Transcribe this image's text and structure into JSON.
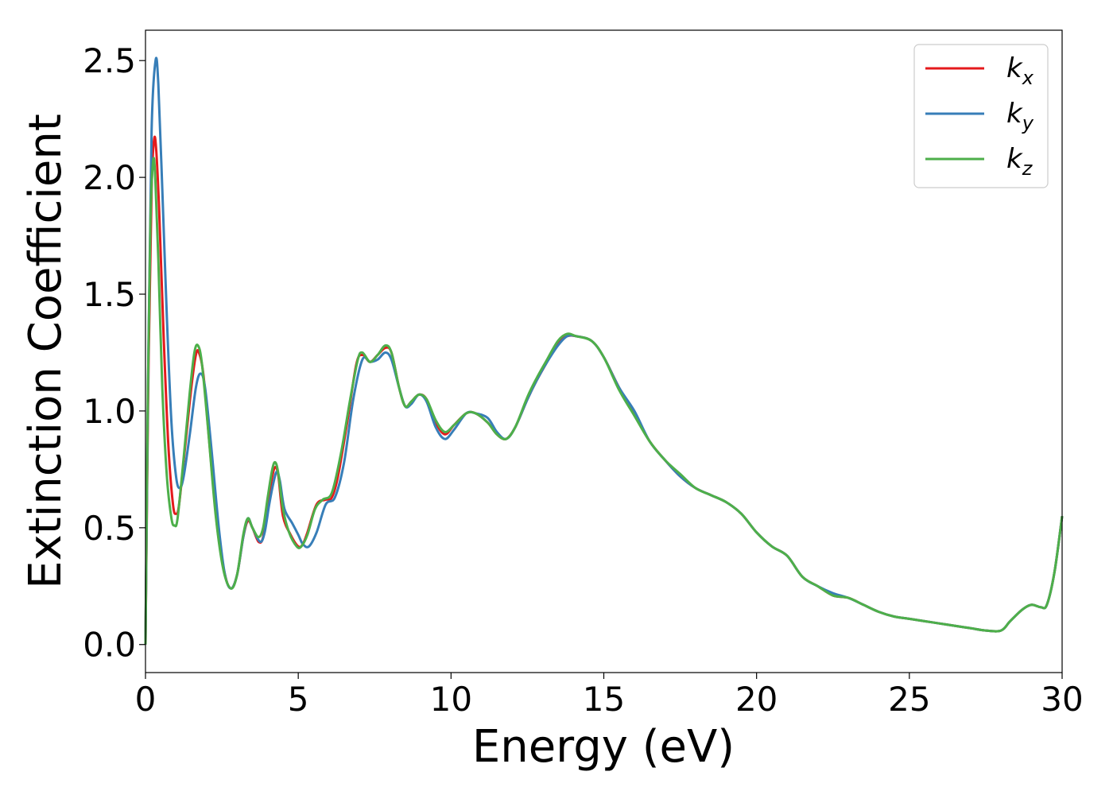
{
  "chart_data": {
    "type": "line",
    "xlabel": "Energy (eV)",
    "ylabel": "Extinction Coefficient",
    "xlim": [
      0,
      30
    ],
    "ylim": [
      -0.12,
      2.63
    ],
    "xticks": [
      0,
      5,
      10,
      15,
      20,
      25,
      30
    ],
    "xtick_labels": [
      "0",
      "5",
      "10",
      "15",
      "20",
      "25",
      "30"
    ],
    "yticks": [
      0.0,
      0.5,
      1.0,
      1.5,
      2.0,
      2.5
    ],
    "ytick_labels": [
      "0.0",
      "0.5",
      "1.0",
      "1.5",
      "2.0",
      "2.5"
    ],
    "grid": false,
    "legend_position": "top-right",
    "colors": {
      "kx": "#e41a1c",
      "ky": "#377eb8",
      "kz": "#4daf4a"
    },
    "series": [
      {
        "id": "kx",
        "name": "k",
        "sub": "x",
        "color": "#e41a1c",
        "points": [
          [
            0,
            0
          ],
          [
            0.1,
            1.2
          ],
          [
            0.2,
            1.95
          ],
          [
            0.28,
            2.16
          ],
          [
            0.35,
            2.12
          ],
          [
            0.45,
            1.85
          ],
          [
            0.6,
            1.3
          ],
          [
            0.75,
            0.85
          ],
          [
            0.9,
            0.6
          ],
          [
            1.0,
            0.56
          ],
          [
            1.1,
            0.6
          ],
          [
            1.3,
            0.85
          ],
          [
            1.5,
            1.1
          ],
          [
            1.65,
            1.24
          ],
          [
            1.75,
            1.25
          ],
          [
            1.9,
            1.15
          ],
          [
            2.1,
            0.85
          ],
          [
            2.35,
            0.5
          ],
          [
            2.6,
            0.3
          ],
          [
            2.8,
            0.24
          ],
          [
            3.0,
            0.3
          ],
          [
            3.2,
            0.46
          ],
          [
            3.35,
            0.53
          ],
          [
            3.5,
            0.5
          ],
          [
            3.7,
            0.44
          ],
          [
            3.85,
            0.46
          ],
          [
            4.0,
            0.6
          ],
          [
            4.15,
            0.72
          ],
          [
            4.25,
            0.76
          ],
          [
            4.35,
            0.72
          ],
          [
            4.5,
            0.55
          ],
          [
            4.75,
            0.47
          ],
          [
            5.0,
            0.42
          ],
          [
            5.15,
            0.43
          ],
          [
            5.3,
            0.48
          ],
          [
            5.6,
            0.6
          ],
          [
            5.9,
            0.62
          ],
          [
            6.1,
            0.63
          ],
          [
            6.3,
            0.72
          ],
          [
            6.6,
            0.95
          ],
          [
            6.9,
            1.2
          ],
          [
            7.1,
            1.24
          ],
          [
            7.35,
            1.21
          ],
          [
            7.6,
            1.24
          ],
          [
            7.85,
            1.27
          ],
          [
            8.05,
            1.25
          ],
          [
            8.3,
            1.1
          ],
          [
            8.5,
            1.02
          ],
          [
            8.7,
            1.04
          ],
          [
            8.95,
            1.07
          ],
          [
            9.2,
            1.05
          ],
          [
            9.5,
            0.95
          ],
          [
            9.8,
            0.9
          ],
          [
            10.1,
            0.94
          ],
          [
            10.5,
            0.99
          ],
          [
            10.8,
            0.99
          ],
          [
            11.2,
            0.95
          ],
          [
            11.5,
            0.9
          ],
          [
            11.8,
            0.88
          ],
          [
            12.1,
            0.93
          ],
          [
            12.5,
            1.05
          ],
          [
            12.8,
            1.13
          ],
          [
            13.1,
            1.2
          ],
          [
            13.5,
            1.29
          ],
          [
            13.8,
            1.32
          ],
          [
            14.1,
            1.32
          ],
          [
            14.6,
            1.3
          ],
          [
            15.0,
            1.23
          ],
          [
            15.5,
            1.1
          ],
          [
            16.0,
            0.99
          ],
          [
            16.5,
            0.87
          ],
          [
            17.0,
            0.79
          ],
          [
            17.5,
            0.72
          ],
          [
            18.0,
            0.67
          ],
          [
            18.5,
            0.64
          ],
          [
            19.0,
            0.61
          ],
          [
            19.5,
            0.56
          ],
          [
            20.0,
            0.48
          ],
          [
            20.5,
            0.42
          ],
          [
            21.0,
            0.38
          ],
          [
            21.5,
            0.29
          ],
          [
            22.0,
            0.25
          ],
          [
            22.5,
            0.21
          ],
          [
            23.0,
            0.2
          ],
          [
            23.5,
            0.17
          ],
          [
            24.0,
            0.14
          ],
          [
            24.5,
            0.12
          ],
          [
            25.0,
            0.11
          ],
          [
            25.5,
            0.1
          ],
          [
            26.0,
            0.09
          ],
          [
            26.5,
            0.08
          ],
          [
            27.0,
            0.07
          ],
          [
            27.5,
            0.06
          ],
          [
            28.0,
            0.06
          ],
          [
            28.3,
            0.1
          ],
          [
            28.7,
            0.15
          ],
          [
            29.0,
            0.17
          ],
          [
            29.3,
            0.16
          ],
          [
            29.5,
            0.17
          ],
          [
            29.75,
            0.31
          ],
          [
            30.0,
            0.55
          ]
        ]
      },
      {
        "id": "ky",
        "name": "k",
        "sub": "y",
        "color": "#377eb8",
        "points": [
          [
            0,
            0
          ],
          [
            0.1,
            1.3
          ],
          [
            0.2,
            2.2
          ],
          [
            0.33,
            2.5
          ],
          [
            0.42,
            2.4
          ],
          [
            0.55,
            1.95
          ],
          [
            0.7,
            1.4
          ],
          [
            0.85,
            0.95
          ],
          [
            1.0,
            0.72
          ],
          [
            1.12,
            0.67
          ],
          [
            1.25,
            0.72
          ],
          [
            1.45,
            0.9
          ],
          [
            1.65,
            1.1
          ],
          [
            1.8,
            1.16
          ],
          [
            1.95,
            1.1
          ],
          [
            2.15,
            0.85
          ],
          [
            2.4,
            0.5
          ],
          [
            2.6,
            0.3
          ],
          [
            2.8,
            0.24
          ],
          [
            3.0,
            0.3
          ],
          [
            3.2,
            0.46
          ],
          [
            3.35,
            0.54
          ],
          [
            3.5,
            0.5
          ],
          [
            3.75,
            0.44
          ],
          [
            3.9,
            0.48
          ],
          [
            4.05,
            0.6
          ],
          [
            4.2,
            0.7
          ],
          [
            4.3,
            0.74
          ],
          [
            4.4,
            0.7
          ],
          [
            4.55,
            0.58
          ],
          [
            4.8,
            0.52
          ],
          [
            5.0,
            0.47
          ],
          [
            5.15,
            0.43
          ],
          [
            5.35,
            0.42
          ],
          [
            5.6,
            0.48
          ],
          [
            5.9,
            0.6
          ],
          [
            6.2,
            0.63
          ],
          [
            6.5,
            0.78
          ],
          [
            6.8,
            1.05
          ],
          [
            7.1,
            1.22
          ],
          [
            7.35,
            1.21
          ],
          [
            7.6,
            1.22
          ],
          [
            7.85,
            1.25
          ],
          [
            8.05,
            1.22
          ],
          [
            8.3,
            1.1
          ],
          [
            8.5,
            1.02
          ],
          [
            8.7,
            1.03
          ],
          [
            8.95,
            1.07
          ],
          [
            9.2,
            1.04
          ],
          [
            9.5,
            0.93
          ],
          [
            9.8,
            0.88
          ],
          [
            10.1,
            0.92
          ],
          [
            10.5,
            0.99
          ],
          [
            10.8,
            0.99
          ],
          [
            11.2,
            0.97
          ],
          [
            11.5,
            0.91
          ],
          [
            11.8,
            0.88
          ],
          [
            12.1,
            0.93
          ],
          [
            12.5,
            1.05
          ],
          [
            12.8,
            1.13
          ],
          [
            13.1,
            1.2
          ],
          [
            13.5,
            1.28
          ],
          [
            13.8,
            1.32
          ],
          [
            14.1,
            1.32
          ],
          [
            14.6,
            1.3
          ],
          [
            15.0,
            1.23
          ],
          [
            15.5,
            1.1
          ],
          [
            16.0,
            1.0
          ],
          [
            16.5,
            0.87
          ],
          [
            17.0,
            0.79
          ],
          [
            17.5,
            0.72
          ],
          [
            18.0,
            0.67
          ],
          [
            18.5,
            0.64
          ],
          [
            19.0,
            0.61
          ],
          [
            19.5,
            0.56
          ],
          [
            20.0,
            0.48
          ],
          [
            20.5,
            0.42
          ],
          [
            21.0,
            0.38
          ],
          [
            21.5,
            0.29
          ],
          [
            22.0,
            0.25
          ],
          [
            22.5,
            0.22
          ],
          [
            23.0,
            0.2
          ],
          [
            23.5,
            0.17
          ],
          [
            24.0,
            0.14
          ],
          [
            24.5,
            0.12
          ],
          [
            25.0,
            0.11
          ],
          [
            25.5,
            0.1
          ],
          [
            26.0,
            0.09
          ],
          [
            26.5,
            0.08
          ],
          [
            27.0,
            0.07
          ],
          [
            27.5,
            0.06
          ],
          [
            28.0,
            0.06
          ],
          [
            28.3,
            0.1
          ],
          [
            28.7,
            0.15
          ],
          [
            29.0,
            0.17
          ],
          [
            29.3,
            0.16
          ],
          [
            29.5,
            0.17
          ],
          [
            29.75,
            0.31
          ],
          [
            30.0,
            0.55
          ]
        ]
      },
      {
        "id": "kz",
        "name": "k",
        "sub": "z",
        "color": "#4daf4a",
        "points": [
          [
            0,
            0
          ],
          [
            0.08,
            1.1
          ],
          [
            0.16,
            1.8
          ],
          [
            0.25,
            2.07
          ],
          [
            0.32,
            2.0
          ],
          [
            0.42,
            1.65
          ],
          [
            0.55,
            1.1
          ],
          [
            0.7,
            0.72
          ],
          [
            0.85,
            0.54
          ],
          [
            0.95,
            0.51
          ],
          [
            1.05,
            0.54
          ],
          [
            1.25,
            0.8
          ],
          [
            1.45,
            1.08
          ],
          [
            1.6,
            1.25
          ],
          [
            1.72,
            1.28
          ],
          [
            1.85,
            1.2
          ],
          [
            2.05,
            0.92
          ],
          [
            2.3,
            0.55
          ],
          [
            2.55,
            0.32
          ],
          [
            2.8,
            0.24
          ],
          [
            3.0,
            0.3
          ],
          [
            3.2,
            0.47
          ],
          [
            3.35,
            0.54
          ],
          [
            3.5,
            0.5
          ],
          [
            3.7,
            0.46
          ],
          [
            3.85,
            0.5
          ],
          [
            4.0,
            0.63
          ],
          [
            4.15,
            0.75
          ],
          [
            4.25,
            0.78
          ],
          [
            4.35,
            0.73
          ],
          [
            4.5,
            0.58
          ],
          [
            4.7,
            0.48
          ],
          [
            4.95,
            0.42
          ],
          [
            5.1,
            0.42
          ],
          [
            5.3,
            0.47
          ],
          [
            5.55,
            0.58
          ],
          [
            5.8,
            0.62
          ],
          [
            6.1,
            0.65
          ],
          [
            6.4,
            0.82
          ],
          [
            6.7,
            1.05
          ],
          [
            6.95,
            1.22
          ],
          [
            7.1,
            1.25
          ],
          [
            7.35,
            1.21
          ],
          [
            7.6,
            1.24
          ],
          [
            7.85,
            1.28
          ],
          [
            8.05,
            1.25
          ],
          [
            8.3,
            1.1
          ],
          [
            8.5,
            1.02
          ],
          [
            8.7,
            1.04
          ],
          [
            8.95,
            1.07
          ],
          [
            9.2,
            1.05
          ],
          [
            9.5,
            0.96
          ],
          [
            9.8,
            0.91
          ],
          [
            10.1,
            0.94
          ],
          [
            10.5,
            0.99
          ],
          [
            10.8,
            0.99
          ],
          [
            11.2,
            0.95
          ],
          [
            11.5,
            0.9
          ],
          [
            11.8,
            0.88
          ],
          [
            12.1,
            0.93
          ],
          [
            12.5,
            1.06
          ],
          [
            12.8,
            1.14
          ],
          [
            13.1,
            1.21
          ],
          [
            13.5,
            1.3
          ],
          [
            13.8,
            1.33
          ],
          [
            14.1,
            1.32
          ],
          [
            14.6,
            1.3
          ],
          [
            15.0,
            1.23
          ],
          [
            15.5,
            1.09
          ],
          [
            16.0,
            0.98
          ],
          [
            16.5,
            0.87
          ],
          [
            17.0,
            0.79
          ],
          [
            17.5,
            0.73
          ],
          [
            18.0,
            0.67
          ],
          [
            18.5,
            0.64
          ],
          [
            19.0,
            0.61
          ],
          [
            19.5,
            0.56
          ],
          [
            20.0,
            0.48
          ],
          [
            20.5,
            0.42
          ],
          [
            21.0,
            0.38
          ],
          [
            21.5,
            0.29
          ],
          [
            22.0,
            0.25
          ],
          [
            22.5,
            0.21
          ],
          [
            23.0,
            0.2
          ],
          [
            23.5,
            0.17
          ],
          [
            24.0,
            0.14
          ],
          [
            24.5,
            0.12
          ],
          [
            25.0,
            0.11
          ],
          [
            25.5,
            0.1
          ],
          [
            26.0,
            0.09
          ],
          [
            26.5,
            0.08
          ],
          [
            27.0,
            0.07
          ],
          [
            27.5,
            0.06
          ],
          [
            28.0,
            0.06
          ],
          [
            28.3,
            0.1
          ],
          [
            28.7,
            0.15
          ],
          [
            29.0,
            0.17
          ],
          [
            29.3,
            0.16
          ],
          [
            29.5,
            0.17
          ],
          [
            29.75,
            0.31
          ],
          [
            30.0,
            0.55
          ]
        ]
      }
    ]
  }
}
